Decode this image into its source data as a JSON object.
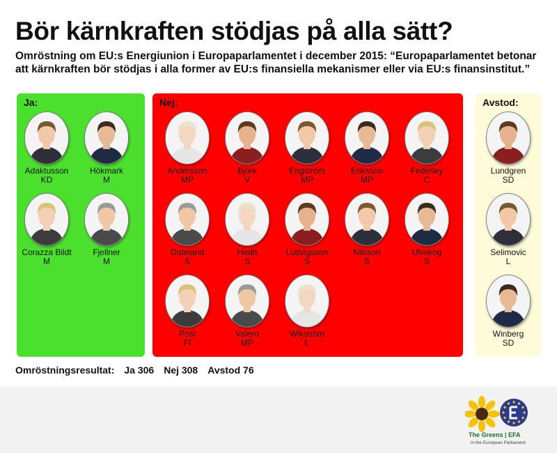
{
  "title": "Bör kärnkraften stödjas på alla sätt?",
  "subtitle": "Omröstning om EU:s Energiunion i Europaparlamentet i december 2015: “Europaparlamentet betonar att kärnkraften bör stödjas i alla former av EU:s finansiella mekanismer eller via EU:s finansinstitut.”",
  "colors": {
    "ja": "#4ce02e",
    "nej": "#ff0000",
    "avstod": "#fdfbd8",
    "brand_green": "#1d6f2d",
    "eu_blue": "#2b3b8f"
  },
  "groups": {
    "ja": {
      "label": "Ja:",
      "members": [
        {
          "name": "Adaktusson",
          "party": "KD"
        },
        {
          "name": "Hökmark",
          "party": "M"
        },
        {
          "name": "Corazza Bildt",
          "party": "M"
        },
        {
          "name": "Fjellner",
          "party": "M"
        }
      ]
    },
    "nej": {
      "label": "Nej:",
      "members": [
        {
          "name": "Andersson",
          "party": "MP"
        },
        {
          "name": "Björk",
          "party": "V"
        },
        {
          "name": "Engström",
          "party": "MP"
        },
        {
          "name": "Eriksson",
          "party": "MP"
        },
        {
          "name": "Federley",
          "party": "C"
        },
        {
          "name": "Guteland",
          "party": "S"
        },
        {
          "name": "Hedh",
          "party": "S"
        },
        {
          "name": "Ludvigsson",
          "party": "S"
        },
        {
          "name": "Nilsson",
          "party": "S"
        },
        {
          "name": "Ulvskog",
          "party": "S"
        },
        {
          "name": "Post",
          "party": "FI"
        },
        {
          "name": "Valero",
          "party": "MP"
        },
        {
          "name": "Wikström",
          "party": "L"
        }
      ]
    },
    "avstod": {
      "label": "Avstod:",
      "members": [
        {
          "name": "Lundgren",
          "party": "SD"
        },
        {
          "name": "Selimovic",
          "party": "L"
        },
        {
          "name": "Winberg",
          "party": "SD"
        }
      ]
    }
  },
  "result": {
    "label": "Omröstningsresultat:",
    "ja": "Ja 306",
    "nej": "Nej 308",
    "avstod": "Avstod 76"
  },
  "logo": {
    "text": "The Greens | EFA",
    "subtext": "in the European Parliament"
  }
}
